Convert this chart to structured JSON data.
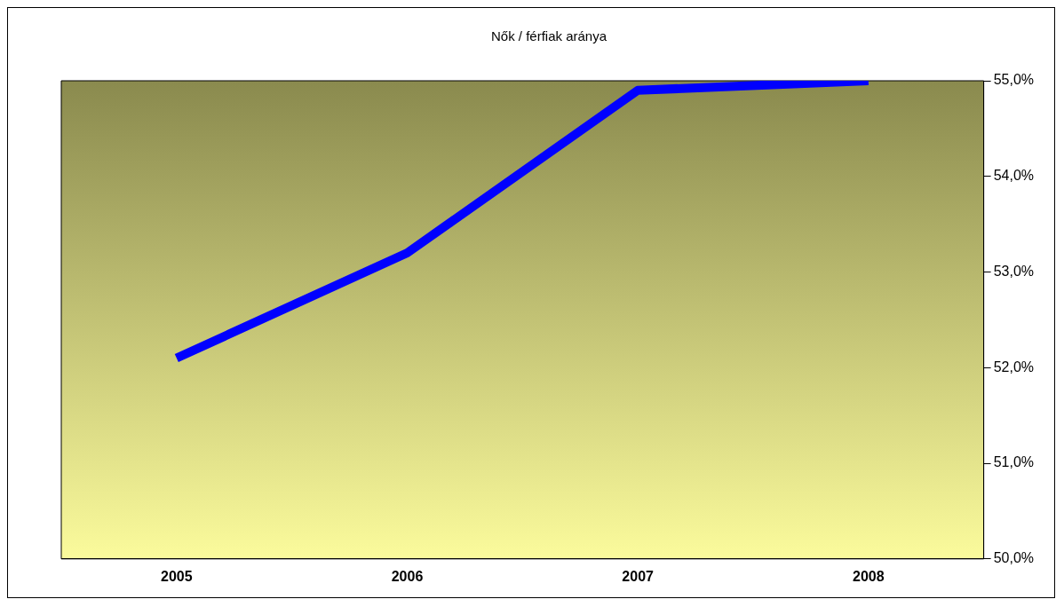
{
  "chart_data": {
    "type": "line",
    "title": "Nők / férfiak aránya",
    "categories": [
      "2005",
      "2006",
      "2007",
      "2008"
    ],
    "series": [
      {
        "color": "#0000ff",
        "values": [
          52.1,
          53.2,
          54.9,
          55.0
        ]
      }
    ],
    "ylim": [
      50,
      55
    ],
    "yticks": [
      {
        "value": 50,
        "label": "50,0%"
      },
      {
        "value": 51,
        "label": "51,0%"
      },
      {
        "value": 52,
        "label": "52,0%"
      },
      {
        "value": 53,
        "label": "53,0%"
      },
      {
        "value": 54,
        "label": "54,0%"
      },
      {
        "value": 55,
        "label": "55,0%"
      }
    ],
    "grid": false,
    "legend": false,
    "marker": "none",
    "line_style": "solid"
  }
}
